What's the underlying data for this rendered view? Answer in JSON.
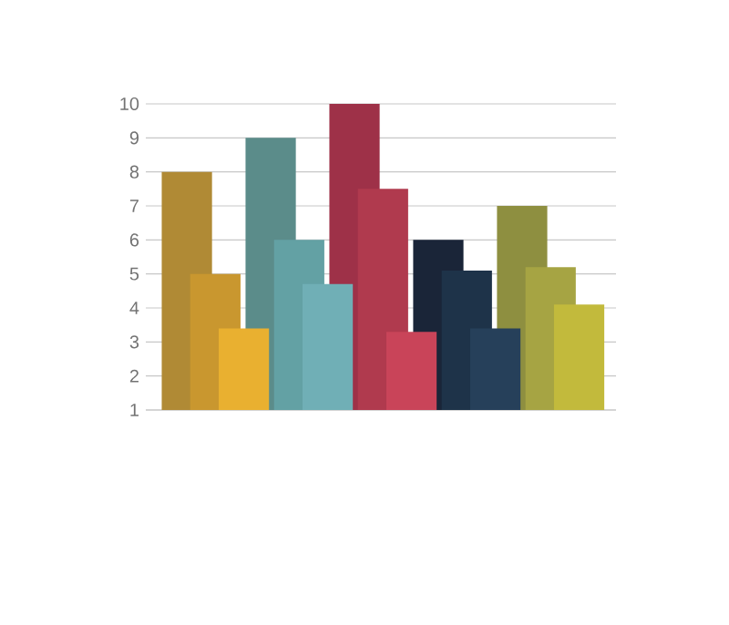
{
  "chart_data": {
    "type": "bar",
    "categories": [
      null,
      null,
      null,
      null,
      null
    ],
    "series": [
      {
        "colors": [
          "#b08a35",
          "#5b8c8a",
          "#9e3148",
          "#1a2538",
          "#8e8f40"
        ],
        "values": [
          8,
          9,
          10,
          6,
          7
        ]
      },
      {
        "colors": [
          "#c9972f",
          "#63a1a4",
          "#b03a4e",
          "#1e3349",
          "#a6a443"
        ],
        "values": [
          5,
          6,
          7.5,
          5.1,
          5.2
        ]
      },
      {
        "colors": [
          "#e9b030",
          "#70afb6",
          "#c94459",
          "#26405a",
          "#c2ba3c"
        ],
        "values": [
          3.4,
          4.7,
          3.3,
          3.4,
          4.1
        ]
      }
    ],
    "ylim": [
      1,
      10
    ],
    "yticks": [
      1,
      2,
      3,
      4,
      5,
      6,
      7,
      8,
      9,
      10
    ],
    "grid": "y",
    "tick_labels": "y"
  }
}
